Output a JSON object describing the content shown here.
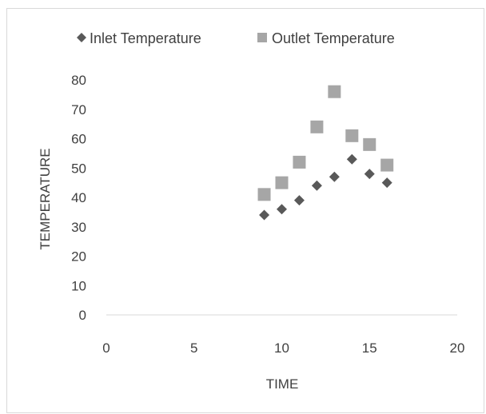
{
  "chart_data": {
    "type": "scatter",
    "title": "",
    "xlabel": "TIME",
    "ylabel": "TEMPERATURE",
    "xlim": [
      0,
      20
    ],
    "ylim": [
      0,
      80
    ],
    "xticks": [
      "0",
      "5",
      "10",
      "15",
      "20"
    ],
    "yticks": [
      "0",
      "10",
      "20",
      "30",
      "40",
      "50",
      "60",
      "70",
      "80"
    ],
    "grid": false,
    "legend_position": "top",
    "series": [
      {
        "name": "Inlet Temperature",
        "marker": "diamond",
        "color": "#595959",
        "points": [
          [
            9,
            34
          ],
          [
            10,
            36
          ],
          [
            11,
            39
          ],
          [
            12,
            44
          ],
          [
            13,
            47
          ],
          [
            14,
            53
          ],
          [
            15,
            48
          ],
          [
            16,
            45
          ]
        ]
      },
      {
        "name": "Outlet Temperature",
        "marker": "square",
        "color": "#a6a6a6",
        "points": [
          [
            9,
            41
          ],
          [
            10,
            45
          ],
          [
            11,
            52
          ],
          [
            12,
            64
          ],
          [
            13,
            76
          ],
          [
            14,
            61
          ],
          [
            15,
            58
          ],
          [
            16,
            51
          ]
        ]
      }
    ]
  }
}
